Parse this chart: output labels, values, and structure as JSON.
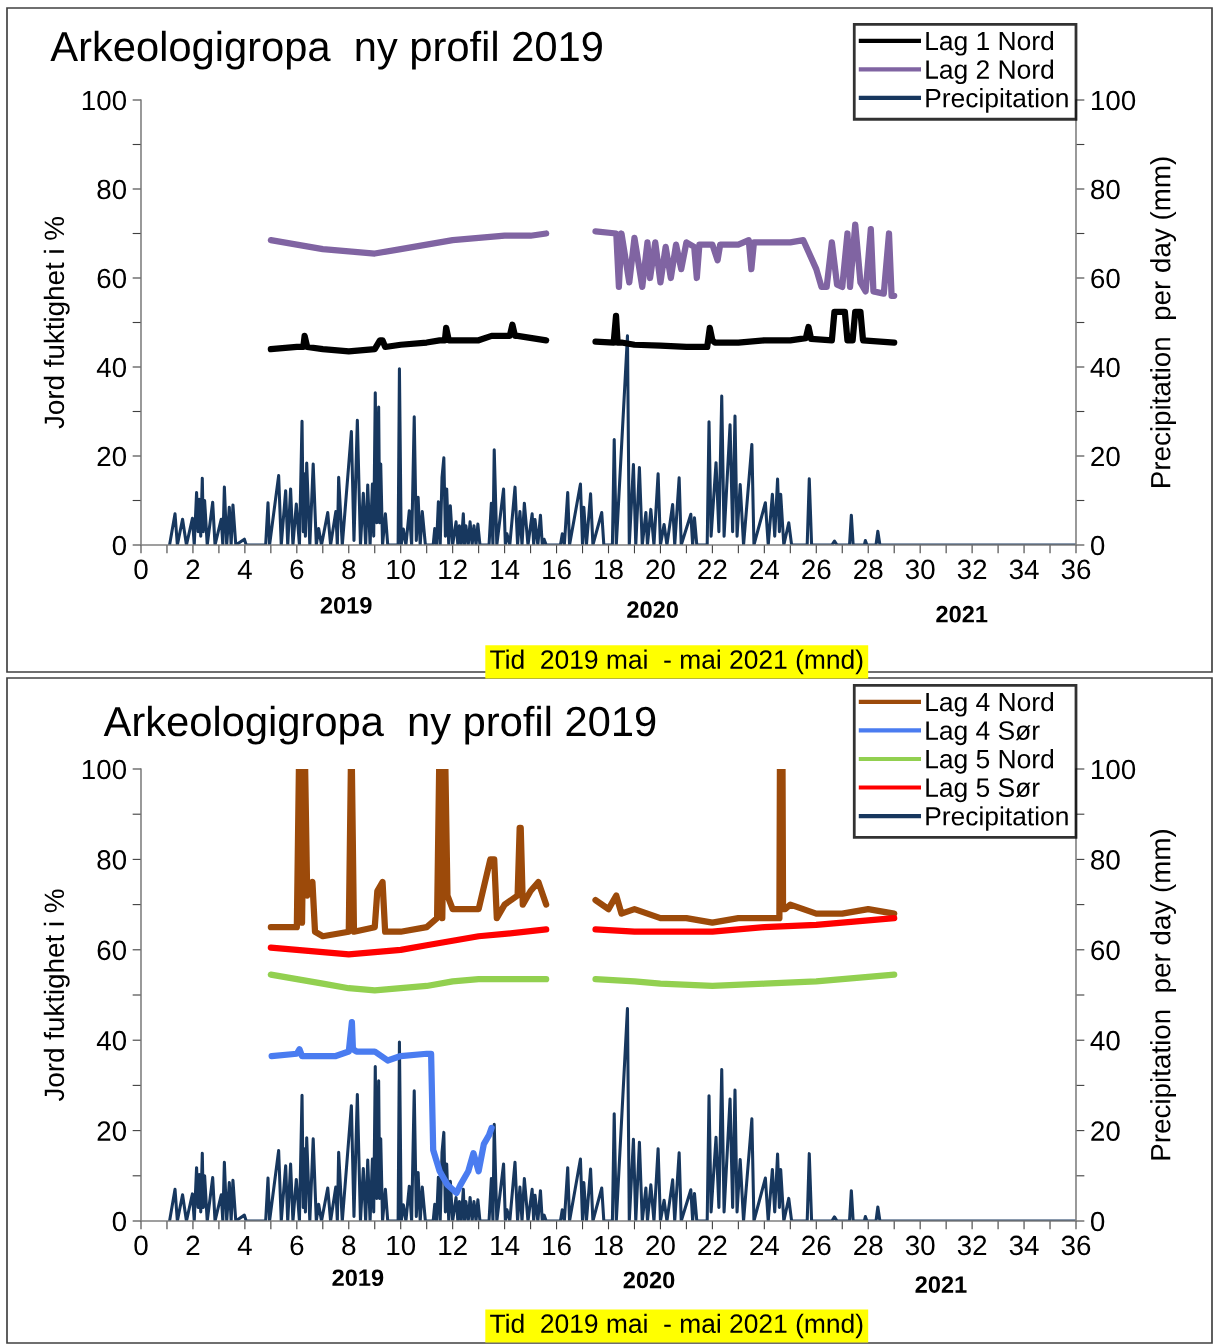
{
  "chart_data": [
    {
      "type": "line",
      "title": "Arkeologigropa  ny profil 2019",
      "xlabel": "Tid  2019 mai  - mai 2021 (mnd)",
      "ylabel": "Jord fuktighet i %",
      "y2label": "Precipitation  per day (mm)",
      "annotations": [
        "2019",
        "2020",
        "2021"
      ],
      "xlim": [
        0,
        36
      ],
      "xticks": [
        0,
        {
          "value": 1,
          "label": null
        },
        2,
        {
          "value": 3,
          "label": null
        },
        4,
        {
          "value": 5,
          "label": null
        },
        6,
        {
          "value": 7,
          "label": null
        },
        8,
        {
          "value": 9,
          "label": null
        },
        10,
        {
          "value": 11,
          "label": null
        },
        12,
        {
          "value": 13,
          "label": null
        },
        14,
        {
          "value": 15,
          "label": null
        },
        16,
        {
          "value": 17,
          "label": null
        },
        18,
        {
          "value": 19,
          "label": null
        },
        20,
        {
          "value": 21,
          "label": null
        },
        22,
        {
          "value": 23,
          "label": null
        },
        24,
        {
          "value": 25,
          "label": null
        },
        26,
        {
          "value": 27,
          "label": null
        },
        28,
        {
          "value": 29,
          "label": null
        },
        30,
        {
          "value": 31,
          "label": null
        },
        32,
        {
          "value": 33,
          "label": null
        },
        34,
        {
          "value": 35,
          "label": null
        },
        36
      ],
      "ylim": [
        0,
        100
      ],
      "yticks": [
        0,
        {
          "value": 10,
          "label": null
        },
        20,
        {
          "value": 30,
          "label": null
        },
        40,
        {
          "value": 50,
          "label": null
        },
        60,
        {
          "value": 70,
          "label": null
        },
        80,
        {
          "value": 90,
          "label": null
        },
        100
      ],
      "y2lim": [
        0,
        100
      ],
      "y2ticks": [
        0,
        {
          "value": 10,
          "label": null
        },
        20,
        {
          "value": 30,
          "label": null
        },
        40,
        {
          "value": 50,
          "label": null
        },
        60,
        {
          "value": 70,
          "label": null
        },
        80,
        {
          "value": 90,
          "label": null
        },
        100
      ],
      "legend": "top right",
      "grid": false,
      "series": [
        {
          "name": "Lag 1 Nord",
          "color": "#000000",
          "x": [
            5.0,
            6.0,
            6.25,
            6.3,
            6.4,
            7,
            8,
            9,
            9.2,
            9.3,
            9.4,
            10,
            11,
            11.5,
            11.7,
            11.75,
            11.85,
            12,
            13,
            13.5,
            14.2,
            14.3,
            14.4,
            14.5,
            15.6,
            16.5,
            17.5,
            18.2,
            18.29,
            18.35,
            18.5,
            19,
            20,
            21,
            21.8,
            21.9,
            22.0,
            22.1,
            23,
            24,
            25,
            25.6,
            25.7,
            25.8,
            26.6,
            26.7,
            27.1,
            27.2,
            27.4,
            27.5,
            27.7,
            27.8,
            29.0
          ],
          "values": [
            44,
            44.5,
            44.5,
            47,
            44.5,
            44,
            43.5,
            44,
            46,
            46,
            44.5,
            45,
            45.5,
            46,
            46,
            48.8,
            46,
            46,
            46,
            47,
            47,
            49.5,
            47,
            47,
            46,
            null,
            45.7,
            45.5,
            51.5,
            45.5,
            45.5,
            45,
            44.8,
            44.5,
            44.5,
            48.8,
            46,
            45.5,
            45.5,
            46,
            46,
            46.5,
            49,
            46.3,
            46,
            52.4,
            52.4,
            46,
            46,
            52.4,
            52.4,
            46,
            45.5
          ]
        },
        {
          "name": "Lag 2 Nord",
          "color": "#8064a2",
          "x": [
            5.0,
            6,
            7,
            8,
            9,
            10,
            11,
            12,
            13,
            14,
            15,
            15.6,
            16.5,
            17.5,
            18.3,
            18.4,
            18.5,
            18.8,
            19,
            19.3,
            19.5,
            19.6,
            19.8,
            20,
            20.2,
            20.4,
            20.6,
            20.8,
            21,
            21.3,
            21.4,
            21.5,
            22,
            22.2,
            22.3,
            23,
            23.4,
            23.5,
            23.6,
            24,
            25,
            25.5,
            26,
            26.2,
            26.4,
            26.6,
            26.8,
            27,
            27.2,
            27.3,
            27.5,
            27.7,
            27.9,
            28.1,
            28.2,
            28.6,
            28.8,
            28.9,
            29.0
          ],
          "values": [
            68.5,
            67.5,
            66.5,
            66,
            65.5,
            66.5,
            67.5,
            68.5,
            69,
            69.5,
            69.5,
            70,
            null,
            70.5,
            70,
            58,
            70,
            59,
            69,
            58,
            68,
            60,
            68,
            59,
            67,
            60,
            67.5,
            62,
            68,
            67,
            60,
            67.5,
            67.5,
            64,
            67.5,
            67.5,
            68.5,
            62,
            68,
            68,
            68,
            68.5,
            62,
            58,
            58,
            68,
            58.5,
            58,
            70,
            58,
            72,
            59,
            57,
            71,
            57,
            56.5,
            70,
            56,
            56
          ]
        },
        {
          "name": "Precipitation",
          "color": "#17375e",
          "axis": "y2",
          "x": [
            1.1,
            1.31,
            1.4,
            1.6,
            1.75,
            1.98,
            2.05,
            2.14,
            2.2,
            2.25,
            2.3,
            2.36,
            2.4,
            2.45,
            2.55,
            2.76,
            2.85,
            3.09,
            3.15,
            3.21,
            3.3,
            3.4,
            3.47,
            3.54,
            3.65,
            3.98,
            4.05,
            4.8,
            4.89,
            4.95,
            5.3,
            5.4,
            5.57,
            5.65,
            5.76,
            5.85,
            5.98,
            6.1,
            6.2,
            6.25,
            6.29,
            6.33,
            6.38,
            6.5,
            6.63,
            6.75,
            6.84,
            6.95,
            7.19,
            7.3,
            7.5,
            7.56,
            7.61,
            7.75,
            8.1,
            8.2,
            8.33,
            8.45,
            8.56,
            8.65,
            8.73,
            8.82,
            8.91,
            8.96,
            9.02,
            9.08,
            9.15,
            9.19,
            9.23,
            9.3,
            9.41,
            9.5,
            9.9,
            9.95,
            10.02,
            10.1,
            10.2,
            10.33,
            10.42,
            10.52,
            10.6,
            10.67,
            10.75,
            10.83,
            10.95,
            11.25,
            11.31,
            11.38,
            11.45,
            11.52,
            11.59,
            11.66,
            11.72,
            11.77,
            11.85,
            11.91,
            12.0,
            12.13,
            12.2,
            12.26,
            12.33,
            12.41,
            12.46,
            12.51,
            12.6,
            12.67,
            12.75,
            12.82,
            12.9,
            12.97,
            13.05,
            13.4,
            13.49,
            13.55,
            13.6,
            13.7,
            13.96,
            14.03,
            14.09,
            14.2,
            14.4,
            14.5,
            14.59,
            14.67,
            14.76,
            14.9,
            15.06,
            15.12,
            15.17,
            15.28,
            15.38,
            15.45,
            15.52,
            15.6,
            16.15,
            16.22,
            16.3,
            16.43,
            16.5,
            16.92,
            17.0,
            17.05,
            17.15,
            17.31,
            17.4,
            17.74,
            17.82,
            18.15,
            18.22,
            18.3,
            18.73,
            18.8,
            18.96,
            19.05,
            19.19,
            19.3,
            19.44,
            19.5,
            19.63,
            19.75,
            19.91,
            20.0,
            20.14,
            20.25,
            20.47,
            20.55,
            20.72,
            20.8,
            21.17,
            21.24,
            21.31,
            21.4,
            21.8,
            21.87,
            21.95,
            22.14,
            22.25,
            22.36,
            22.45,
            22.68,
            22.78,
            22.87,
            22.95,
            23.07,
            23.2,
            23.52,
            23.6,
            24.04,
            24.15,
            24.31,
            24.4,
            24.51,
            24.58,
            24.63,
            24.75,
            24.94,
            25.05,
            25.65,
            25.73,
            25.82,
            26.6,
            26.7,
            26.8,
            27.28,
            27.35,
            27.42,
            27.85,
            27.89,
            27.95,
            28.3,
            28.37,
            28.45,
            29.03,
            36
          ],
          "values": [
            0,
            7,
            0,
            5.8,
            0,
            6,
            0,
            11.8,
            3,
            10.3,
            2,
            15,
            3,
            10,
            0,
            9.6,
            0,
            5.8,
            0,
            13,
            0,
            8.5,
            0,
            9,
            0,
            1.3,
            0,
            0,
            9.5,
            0,
            15.6,
            0,
            12.2,
            0,
            12.6,
            0,
            9.2,
            0,
            27.8,
            3,
            16,
            2,
            18.4,
            0,
            18.2,
            0,
            3.7,
            0,
            7.3,
            0,
            7.5,
            0,
            15.2,
            0,
            25.5,
            1,
            28,
            0,
            11.6,
            0,
            13.5,
            0,
            13.7,
            2,
            34.2,
            5,
            31,
            5,
            18.2,
            0,
            7,
            0,
            0,
            39.6,
            0,
            3.6,
            0,
            7.7,
            0,
            28.8,
            1,
            10.7,
            0,
            7.5,
            0,
            0,
            3.7,
            0,
            9.7,
            0,
            15.2,
            19.6,
            2,
            12.6,
            0,
            8.8,
            0,
            5.2,
            0,
            4.3,
            0,
            7,
            0,
            4.3,
            0,
            5.2,
            0,
            4.3,
            0,
            4.7,
            0,
            0,
            9.4,
            0,
            21.4,
            0,
            12.6,
            0,
            2.5,
            0,
            13,
            0,
            7.5,
            0,
            9.4,
            0,
            7,
            0,
            5.7,
            0,
            6.7,
            0,
            1.3,
            0,
            0,
            2.5,
            0,
            11.8,
            0,
            13.7,
            0,
            8.5,
            0,
            11.5,
            0,
            7.3,
            0,
            0,
            23.7,
            0,
            47,
            0,
            18.1,
            0,
            17.4,
            0,
            7.3,
            0,
            8,
            0,
            16,
            0,
            4.6,
            0,
            9.1,
            0,
            15.1,
            0,
            6.9,
            0,
            6.1,
            0,
            0,
            27.7,
            2,
            18.5,
            3,
            33.5,
            2,
            27,
            3,
            29,
            2,
            13.6,
            0,
            22.6,
            0,
            9.5,
            0,
            11.4,
            2,
            14.8,
            3,
            11.4,
            0,
            5,
            0,
            0,
            14.9,
            0,
            0,
            0.9,
            0,
            0,
            6.7,
            0,
            0,
            1,
            0,
            0,
            3.1,
            0,
            0,
            0
          ]
        }
      ]
    },
    {
      "type": "line",
      "title": "Arkeologigropa  ny profil 2019",
      "xlabel": "Tid  2019 mai  - mai 2021 (mnd)",
      "ylabel": "Jord fuktighet i %",
      "y2label": "Precipitation  per day (mm)",
      "annotations": [
        "2019",
        "2020",
        "2021"
      ],
      "xlim": [
        0,
        36
      ],
      "xticks": [
        0,
        {
          "value": 1,
          "label": null
        },
        2,
        {
          "value": 3,
          "label": null
        },
        4,
        {
          "value": 5,
          "label": null
        },
        6,
        {
          "value": 7,
          "label": null
        },
        8,
        {
          "value": 9,
          "label": null
        },
        10,
        {
          "value": 11,
          "label": null
        },
        12,
        {
          "value": 13,
          "label": null
        },
        14,
        {
          "value": 15,
          "label": null
        },
        16,
        {
          "value": 17,
          "label": null
        },
        18,
        {
          "value": 19,
          "label": null
        },
        20,
        {
          "value": 21,
          "label": null
        },
        22,
        {
          "value": 23,
          "label": null
        },
        24,
        {
          "value": 25,
          "label": null
        },
        26,
        {
          "value": 27,
          "label": null
        },
        28,
        {
          "value": 29,
          "label": null
        },
        30,
        {
          "value": 31,
          "label": null
        },
        32,
        {
          "value": 33,
          "label": null
        },
        34,
        {
          "value": 35,
          "label": null
        },
        36
      ],
      "ylim": [
        0,
        100
      ],
      "yticks": [
        0,
        {
          "value": 10,
          "label": null
        },
        20,
        {
          "value": 30,
          "label": null
        },
        40,
        {
          "value": 50,
          "label": null
        },
        60,
        {
          "value": 70,
          "label": null
        },
        80,
        {
          "value": 90,
          "label": null
        },
        100
      ],
      "y2lim": [
        0,
        100
      ],
      "y2ticks": [
        0,
        {
          "value": 10,
          "label": null
        },
        20,
        {
          "value": 30,
          "label": null
        },
        40,
        {
          "value": 50,
          "label": null
        },
        60,
        {
          "value": 70,
          "label": null
        },
        80,
        {
          "value": 90,
          "label": null
        },
        100
      ],
      "legend": "top right",
      "grid": false,
      "series": [
        {
          "name": "Lag 4 Nord",
          "color": "#9c4a0a",
          "x": [
            5.0,
            6,
            6.08,
            6.12,
            6.2,
            6.28,
            6.32,
            6.4,
            6.6,
            6.7,
            7,
            8,
            8.08,
            8.12,
            8.2,
            9,
            9.1,
            9.3,
            9.4,
            10,
            11,
            11.4,
            11.48,
            11.52,
            11.6,
            11.68,
            11.72,
            11.8,
            12,
            13,
            13.45,
            13.6,
            13.7,
            14,
            14.5,
            14.58,
            14.62,
            14.7,
            15,
            15.3,
            15.6,
            16.5,
            17.5,
            18,
            18.3,
            18.5,
            19,
            20,
            21,
            22,
            23,
            24,
            24.58,
            24.6,
            24.7,
            24.72,
            24.8,
            25,
            26,
            27,
            28,
            29
          ],
          "values": [
            65,
            65,
            100,
            100,
            66,
            100,
            100,
            72,
            75,
            64,
            63,
            64,
            100,
            100,
            64,
            65,
            73,
            75,
            64,
            64,
            65,
            67,
            100,
            100,
            67,
            100,
            100,
            72,
            69,
            69,
            80,
            80,
            67,
            70,
            72,
            87,
            87,
            70,
            73,
            75,
            70,
            null,
            71,
            69,
            72,
            68,
            69,
            67,
            67,
            66,
            67,
            67,
            67,
            100,
            100,
            69,
            69,
            70,
            68,
            68,
            69,
            68
          ]
        },
        {
          "name": "Lag 4 Sør",
          "color": "#4a7cf0",
          "x": [
            5.03,
            6,
            6.1,
            6.2,
            7.5,
            8,
            8.12,
            8.16,
            8.3,
            9,
            9.5,
            10,
            11,
            11.17,
            11.25,
            11.5,
            11.8,
            12.15,
            12.3,
            12.6,
            12.8,
            13.0,
            13.2,
            13.4,
            13.5
          ],
          "values": [
            36.5,
            37,
            38,
            36.5,
            36.5,
            37.5,
            44,
            38,
            37.5,
            37.5,
            35.5,
            36.5,
            37,
            37,
            15.7,
            11,
            8,
            6.2,
            8,
            11,
            15,
            11,
            17,
            19,
            20.6
          ]
        },
        {
          "name": "Lag 5 Nord",
          "color": "#92d050",
          "x": [
            5.0,
            6,
            7,
            8,
            9,
            10,
            11,
            12,
            13,
            14,
            15.6,
            16.5,
            17.5,
            19,
            20,
            22,
            24,
            26,
            28,
            29
          ],
          "values": [
            54.5,
            53.5,
            52.5,
            51.5,
            51,
            51.5,
            52,
            53,
            53.5,
            53.5,
            53.5,
            null,
            53.5,
            53,
            52.5,
            52,
            52.5,
            53,
            54,
            54.5
          ]
        },
        {
          "name": "Lag 5 Sør",
          "color": "#ff0000",
          "x": [
            5.0,
            6,
            7,
            8,
            9,
            10,
            11,
            12,
            13,
            14,
            15.6,
            16.5,
            17.5,
            19,
            20,
            22,
            24,
            26,
            28,
            29
          ],
          "values": [
            60.5,
            60,
            59.5,
            59,
            59.5,
            60,
            61,
            62,
            63,
            63.5,
            64.5,
            null,
            64.5,
            64,
            64,
            64,
            65,
            65.5,
            66.5,
            67
          ]
        },
        {
          "name": "Precipitation",
          "color": "#17375e",
          "axis": "y2",
          "x": [
            1.1,
            1.31,
            1.4,
            1.6,
            1.75,
            1.98,
            2.05,
            2.14,
            2.2,
            2.25,
            2.3,
            2.36,
            2.4,
            2.45,
            2.55,
            2.76,
            2.85,
            3.09,
            3.15,
            3.21,
            3.3,
            3.4,
            3.47,
            3.54,
            3.65,
            3.98,
            4.05,
            4.8,
            4.89,
            4.95,
            5.3,
            5.4,
            5.57,
            5.65,
            5.76,
            5.85,
            5.98,
            6.1,
            6.2,
            6.25,
            6.29,
            6.33,
            6.38,
            6.5,
            6.63,
            6.75,
            6.84,
            6.95,
            7.19,
            7.3,
            7.5,
            7.56,
            7.61,
            7.75,
            8.1,
            8.2,
            8.33,
            8.45,
            8.56,
            8.65,
            8.73,
            8.82,
            8.91,
            8.96,
            9.02,
            9.08,
            9.15,
            9.19,
            9.23,
            9.3,
            9.41,
            9.5,
            9.9,
            9.95,
            10.02,
            10.1,
            10.2,
            10.33,
            10.42,
            10.52,
            10.6,
            10.67,
            10.75,
            10.83,
            10.95,
            11.25,
            11.31,
            11.38,
            11.45,
            11.52,
            11.59,
            11.66,
            11.72,
            11.77,
            11.85,
            11.91,
            12.0,
            12.13,
            12.2,
            12.26,
            12.33,
            12.41,
            12.46,
            12.51,
            12.6,
            12.67,
            12.75,
            12.82,
            12.9,
            12.97,
            13.05,
            13.4,
            13.49,
            13.55,
            13.6,
            13.7,
            13.96,
            14.03,
            14.09,
            14.2,
            14.4,
            14.5,
            14.59,
            14.67,
            14.76,
            14.9,
            15.06,
            15.12,
            15.17,
            15.28,
            15.38,
            15.45,
            15.52,
            15.6,
            16.15,
            16.22,
            16.3,
            16.43,
            16.5,
            16.92,
            17.0,
            17.05,
            17.15,
            17.31,
            17.4,
            17.74,
            17.82,
            18.15,
            18.22,
            18.3,
            18.73,
            18.8,
            18.96,
            19.05,
            19.19,
            19.3,
            19.44,
            19.5,
            19.63,
            19.75,
            19.91,
            20.0,
            20.14,
            20.25,
            20.47,
            20.55,
            20.72,
            20.8,
            21.17,
            21.24,
            21.31,
            21.4,
            21.8,
            21.87,
            21.95,
            22.14,
            22.25,
            22.36,
            22.45,
            22.68,
            22.78,
            22.87,
            22.95,
            23.07,
            23.2,
            23.52,
            23.6,
            24.04,
            24.15,
            24.31,
            24.4,
            24.51,
            24.58,
            24.63,
            24.75,
            24.94,
            25.05,
            25.65,
            25.73,
            25.82,
            26.6,
            26.7,
            26.8,
            27.28,
            27.35,
            27.42,
            27.85,
            27.89,
            27.95,
            28.3,
            28.37,
            28.45,
            29.03,
            36
          ],
          "values": [
            0,
            7,
            0,
            5.8,
            0,
            6,
            0,
            11.8,
            3,
            10.3,
            2,
            15,
            3,
            10,
            0,
            9.6,
            0,
            5.8,
            0,
            13,
            0,
            8.5,
            0,
            9,
            0,
            1.3,
            0,
            0,
            9.5,
            0,
            15.6,
            0,
            12.2,
            0,
            12.6,
            0,
            9.2,
            0,
            27.8,
            3,
            16,
            2,
            18.4,
            0,
            18.2,
            0,
            3.7,
            0,
            7.3,
            0,
            7.5,
            0,
            15.2,
            0,
            25.5,
            1,
            28,
            0,
            11.6,
            0,
            13.5,
            0,
            13.7,
            2,
            34.2,
            5,
            31,
            5,
            18.2,
            0,
            7,
            0,
            0,
            39.6,
            0,
            3.6,
            0,
            7.7,
            0,
            28.8,
            1,
            10.7,
            0,
            7.5,
            0,
            0,
            3.7,
            0,
            9.7,
            0,
            15.2,
            19.6,
            2,
            12.6,
            0,
            8.8,
            0,
            5.2,
            0,
            4.3,
            0,
            7,
            0,
            4.3,
            0,
            5.2,
            0,
            4.3,
            0,
            4.7,
            0,
            0,
            9.4,
            0,
            21.4,
            0,
            12.6,
            0,
            2.5,
            0,
            13,
            0,
            7.5,
            0,
            9.4,
            0,
            7,
            0,
            5.7,
            0,
            6.7,
            0,
            1.3,
            0,
            0,
            2.5,
            0,
            11.8,
            0,
            13.7,
            0,
            8.5,
            0,
            11.5,
            0,
            7.3,
            0,
            0,
            23.7,
            0,
            47,
            0,
            18.1,
            0,
            17.4,
            0,
            7.3,
            0,
            8,
            0,
            16,
            0,
            4.6,
            0,
            9.1,
            0,
            15.1,
            0,
            6.9,
            0,
            6.1,
            0,
            0,
            27.7,
            2,
            18.5,
            3,
            33.5,
            2,
            27,
            3,
            29,
            2,
            13.6,
            0,
            22.6,
            0,
            9.5,
            0,
            11.4,
            2,
            14.8,
            3,
            11.4,
            0,
            5,
            0,
            0,
            14.9,
            0,
            0,
            0.9,
            0,
            0,
            6.7,
            0,
            0,
            1,
            0,
            0,
            3.1,
            0,
            0,
            0
          ]
        }
      ]
    }
  ]
}
